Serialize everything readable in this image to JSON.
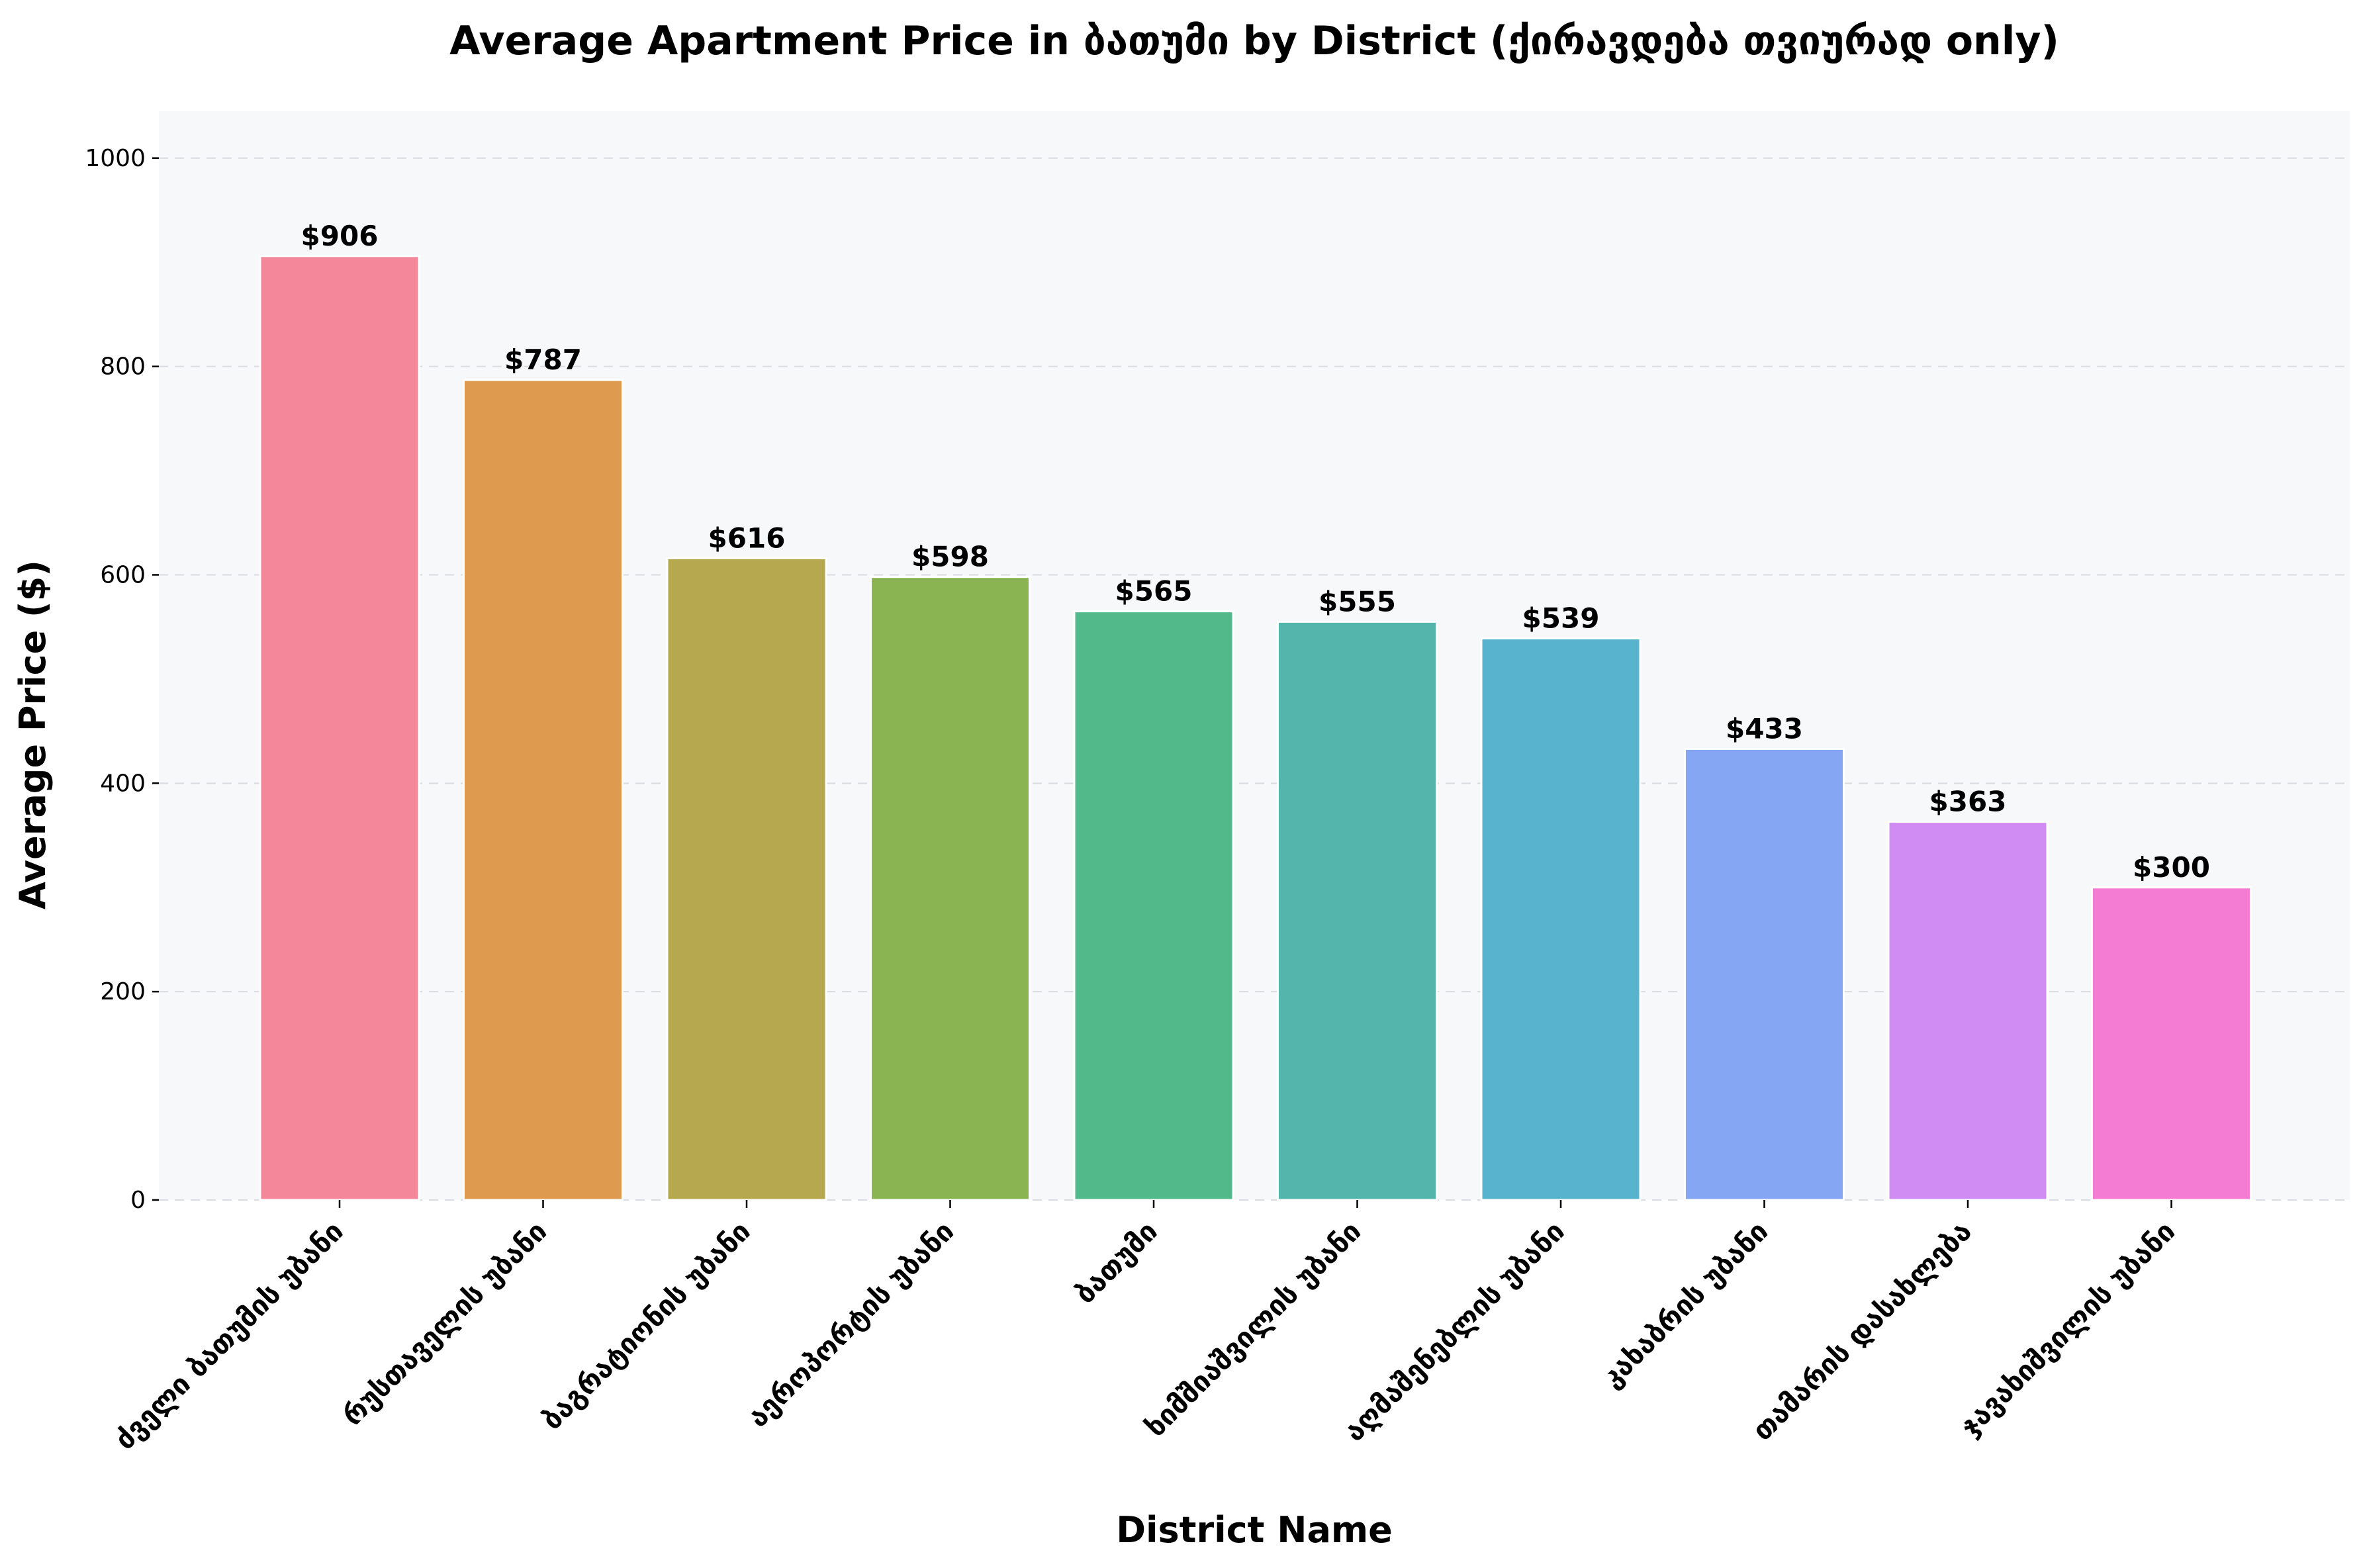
{
  "chart_data": {
    "type": "bar",
    "title": "Average Apartment Price in ბათუმი by District (ქირავდება თვიურად only)",
    "xlabel": "District Name",
    "ylabel": "Average Price ($)",
    "ylim": [
      0,
      1045
    ],
    "yticks": [
      0,
      200,
      400,
      600,
      800,
      1000
    ],
    "grid": true,
    "value_prefix": "$",
    "categories": [
      "ძველი ბათუმის უბანი",
      "რუსთაველის უბანი",
      "ბაგრატიონის უბანი",
      "აეროპორტის უბანი",
      "ბათუმი",
      "ხიმშიაშვილის უბანი",
      "აღმაშენებლის უბანი",
      "კახაბრის უბანი",
      "თამარის დასახლება",
      "ჯავახიშვილის უბანი"
    ],
    "values": [
      906,
      787,
      616,
      598,
      565,
      555,
      539,
      433,
      363,
      300
    ],
    "colors": [
      "#f5879a",
      "#de9a4e",
      "#b6a84f",
      "#8ab452",
      "#52b98b",
      "#54b5ac",
      "#58b3ce",
      "#85a6f2",
      "#d18cf3",
      "#f47dd3"
    ],
    "plot_background": "#f7f8fa"
  }
}
